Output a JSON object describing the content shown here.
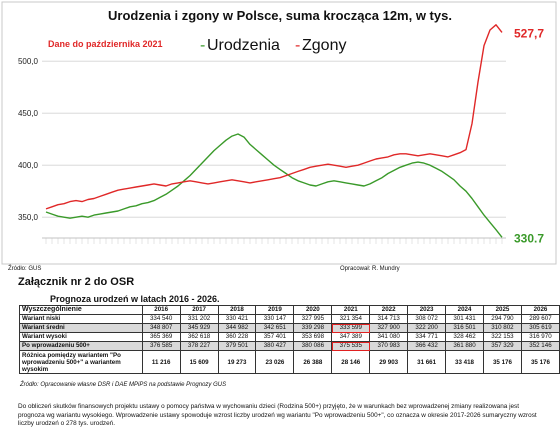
{
  "chart_data": {
    "type": "line",
    "title": "Urodzenia i zgony w Polsce, suma krocząca 12m, w tys.",
    "annotation": "Dane do października 2021",
    "legend": [
      {
        "name": "Urodzenia",
        "color": "#3a9a2a",
        "prefix": "-"
      },
      {
        "name": "Zgony",
        "color": "#e02828",
        "prefix": "-"
      }
    ],
    "ylim": [
      330,
      530
    ],
    "yticks": [
      "500,0",
      "450,0",
      "400,0",
      "350,0"
    ],
    "ytick_values": [
      500,
      450,
      400,
      350
    ],
    "series": [
      {
        "name": "Urodzenia",
        "color": "#3a9a2a",
        "last_label": "330.7",
        "values": [
          355,
          353,
          351,
          350,
          349,
          350,
          351,
          350,
          352,
          353,
          354,
          355,
          356,
          358,
          360,
          361,
          363,
          364,
          366,
          369,
          372,
          376,
          380,
          385,
          390,
          396,
          402,
          408,
          414,
          419,
          424,
          428,
          430,
          427,
          420,
          415,
          410,
          405,
          400,
          396,
          392,
          388,
          385,
          383,
          381,
          380,
          382,
          384,
          385,
          384,
          383,
          382,
          381,
          380,
          382,
          385,
          388,
          392,
          395,
          398,
          400,
          402,
          403,
          402,
          400,
          397,
          394,
          390,
          386,
          380,
          375,
          368,
          360,
          352,
          345,
          338,
          330.7
        ]
      },
      {
        "name": "Zgony",
        "color": "#e02828",
        "last_label": "527,7",
        "values": [
          358,
          360,
          362,
          363,
          365,
          366,
          365,
          367,
          368,
          370,
          372,
          374,
          376,
          377,
          378,
          379,
          380,
          381,
          382,
          381,
          380,
          382,
          383,
          384,
          385,
          384,
          383,
          382,
          383,
          384,
          385,
          386,
          385,
          384,
          383,
          384,
          385,
          386,
          387,
          388,
          390,
          392,
          394,
          396,
          398,
          399,
          400,
          401,
          400,
          399,
          398,
          399,
          400,
          402,
          404,
          406,
          407,
          408,
          410,
          411,
          411,
          410,
          409,
          410,
          411,
          410,
          409,
          408,
          410,
          412,
          415,
          440,
          480,
          515,
          530,
          535,
          527.7
        ]
      }
    ]
  },
  "source_left": "Źródło: GUS",
  "source_right": "Opracował: R. Mundry",
  "annex_title": "Załącznik nr 2 do OSR",
  "table": {
    "title": "Prognoza urodzeń w latach 2016 - 2026.",
    "header_label": "Wyszczególnienie",
    "years": [
      "2016",
      "2017",
      "2018",
      "2019",
      "2020",
      "2021",
      "2022",
      "2023",
      "2024",
      "2025",
      "2026"
    ],
    "rows": [
      {
        "label": "Wariant niski",
        "values": [
          "334 540",
          "331 202",
          "330 421",
          "330 147",
          "327 995",
          "321 354",
          "314 713",
          "308 072",
          "301 431",
          "294 790",
          "289 607"
        ],
        "shaded": false,
        "diff": false
      },
      {
        "label": "Wariant średni",
        "values": [
          "348 807",
          "345 929",
          "344 982",
          "342 651",
          "339 298",
          "333 599",
          "327 900",
          "322 200",
          "316 501",
          "310 802",
          "305 619"
        ],
        "shaded": true,
        "diff": false
      },
      {
        "label": "Wariant wysoki",
        "values": [
          "365 369",
          "362 618",
          "360 228",
          "357 401",
          "353 698",
          "347 389",
          "341 080",
          "334 771",
          "328 462",
          "322 153",
          "316 970"
        ],
        "shaded": false,
        "diff": false
      },
      {
        "label": "Po wprowadzeniu 500+",
        "values": [
          "376 585",
          "378 227",
          "379 501",
          "380 427",
          "380 086",
          "375 535",
          "370 983",
          "366 432",
          "361 880",
          "357 329",
          "352 146"
        ],
        "shaded": true,
        "diff": false
      },
      {
        "label": "Różnica pomiędzy wariantem \"Po wprowadzeniu 500+\" a wariantem wysokim",
        "values": [
          "11 216",
          "15 609",
          "19 273",
          "23 026",
          "26 388",
          "28 146",
          "29 903",
          "31 661",
          "33 418",
          "35 176",
          "35 176"
        ],
        "shaded": false,
        "diff": true
      }
    ],
    "source": "Źródło: Opracowanie własne DSR i DAE MPiPS na podstawie Prognozy GUS"
  },
  "footnote": "Do obliczeń skutków finansowych projektu ustawy o pomocy państwa w wychowaniu dzieci (Rodzina 500+) przyjęto, że w warunkach bez wprowadzenej zmiany realizowana jest prognoza wg wariantu wysokiego. Wprowadzenie ustawy spowoduje wzrost liczby urodzeń wg wariantu \"Po wprowadzeniu 500+\", co oznacza w okresie 2017-2026 sumaryczny wzrost liczby urodzeń o 278 tys. urodzeń."
}
